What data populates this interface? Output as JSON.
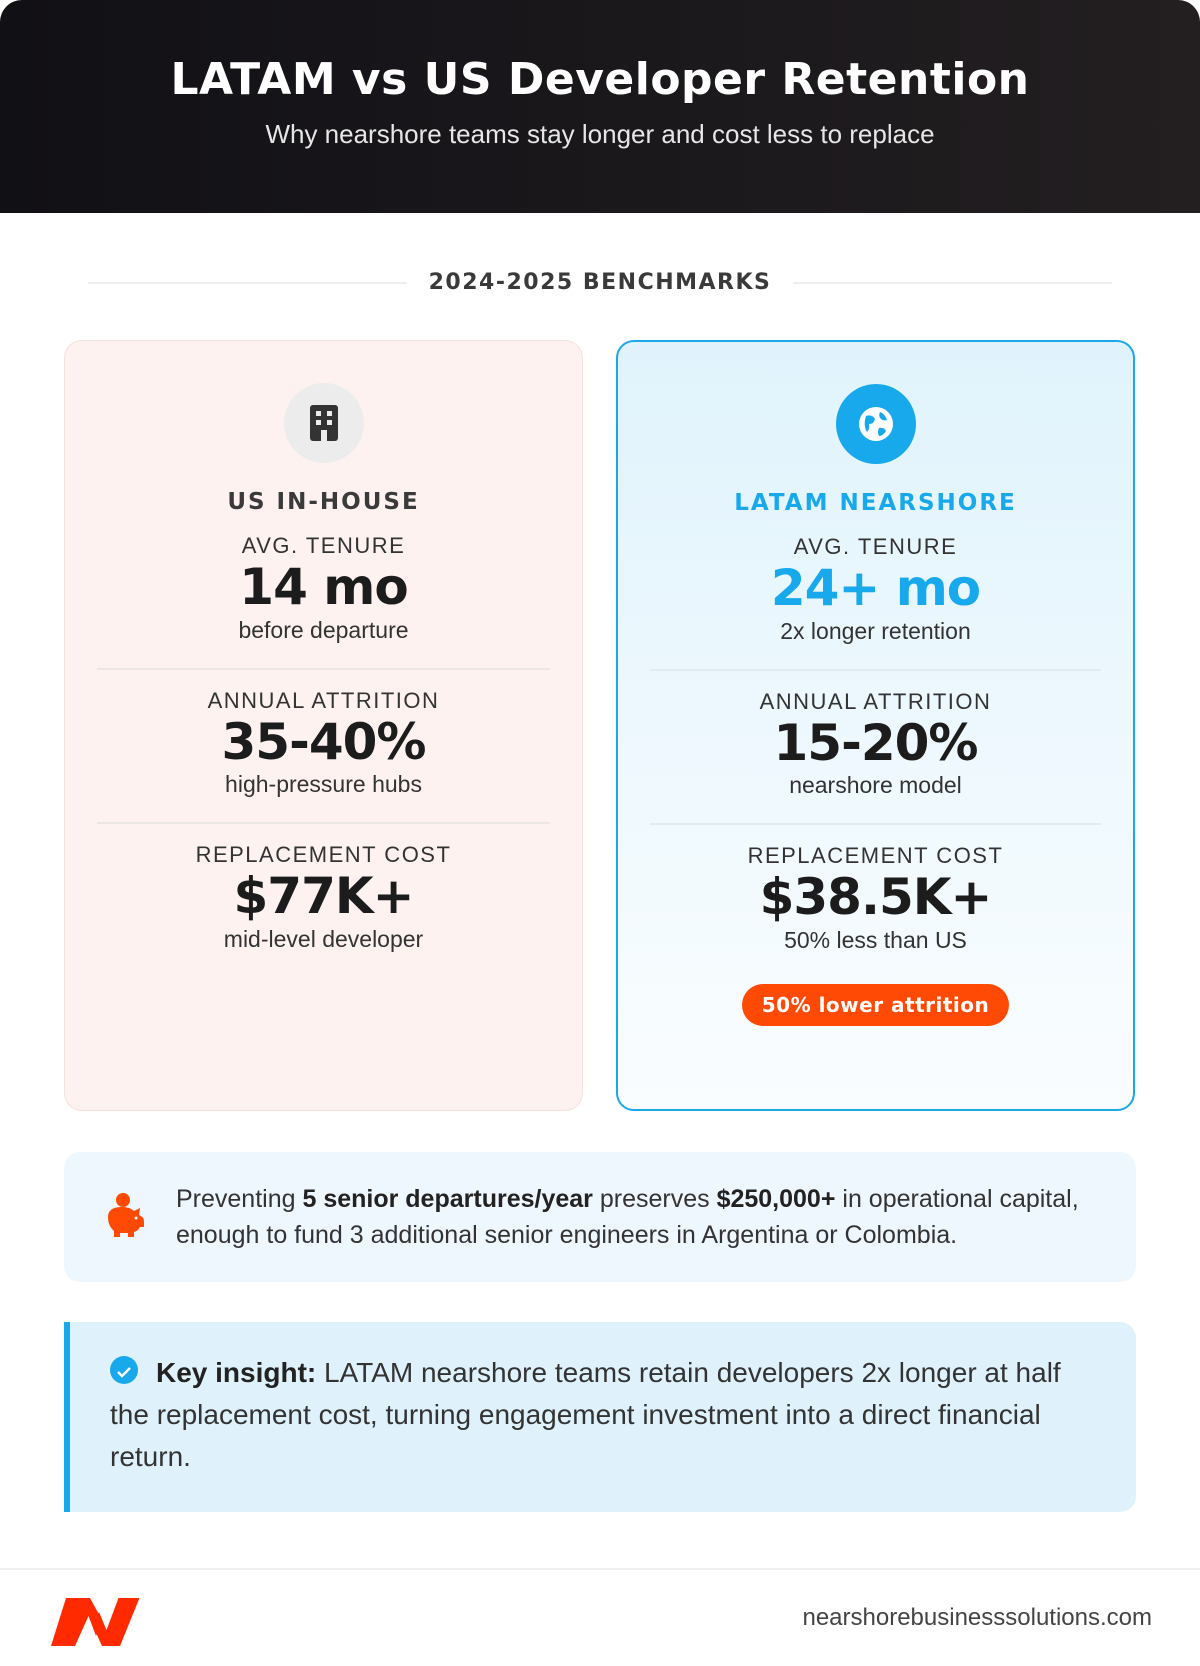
{
  "header": {
    "title": "LATAM vs US Developer Retention",
    "subtitle": "Why nearshore teams stay longer and cost less to replace"
  },
  "section_label": "2024-2025 BENCHMARKS",
  "cards": [
    {
      "icon": "building-icon",
      "title": "US IN-HOUSE",
      "metrics": [
        {
          "label": "AVG. TENURE",
          "value": "14 mo",
          "sub": "before departure"
        },
        {
          "label": "ANNUAL ATTRITION",
          "value": "35-40%",
          "sub": "high-pressure hubs"
        },
        {
          "label": "REPLACEMENT COST",
          "value": "$77K+",
          "sub": "mid-level developer"
        }
      ]
    },
    {
      "icon": "globe-icon",
      "title": "LATAM NEARSHORE",
      "metrics": [
        {
          "label": "AVG. TENURE",
          "value": "24+ mo",
          "sub": "2x longer retention"
        },
        {
          "label": "ANNUAL ATTRITION",
          "value": "15-20%",
          "sub": "nearshore model"
        },
        {
          "label": "REPLACEMENT COST",
          "value": "$38.5K+",
          "sub": "50% less than US"
        }
      ],
      "badge": "50% lower attrition"
    }
  ],
  "savings": {
    "icon": "piggy-bank-icon",
    "pre": "Preventing ",
    "bold1": "5 senior departures/year",
    "mid": " preserves ",
    "bold2": "$250,000+",
    "post": " in operational capital, enough to fund 3 additional senior engineers in Argentina or Colombia."
  },
  "insight": {
    "icon": "check-circle-icon",
    "label": "Key insight:",
    "text": " LATAM nearshore teams retain developers 2x longer at half the replacement cost, turning engagement investment into a direct financial return."
  },
  "footer": {
    "url": "nearshorebusinesssolutions.com",
    "logo_text": "N"
  },
  "colors": {
    "accent_blue": "#18a9ec",
    "accent_orange": "#ff4a05",
    "header_dark": "#151318"
  }
}
